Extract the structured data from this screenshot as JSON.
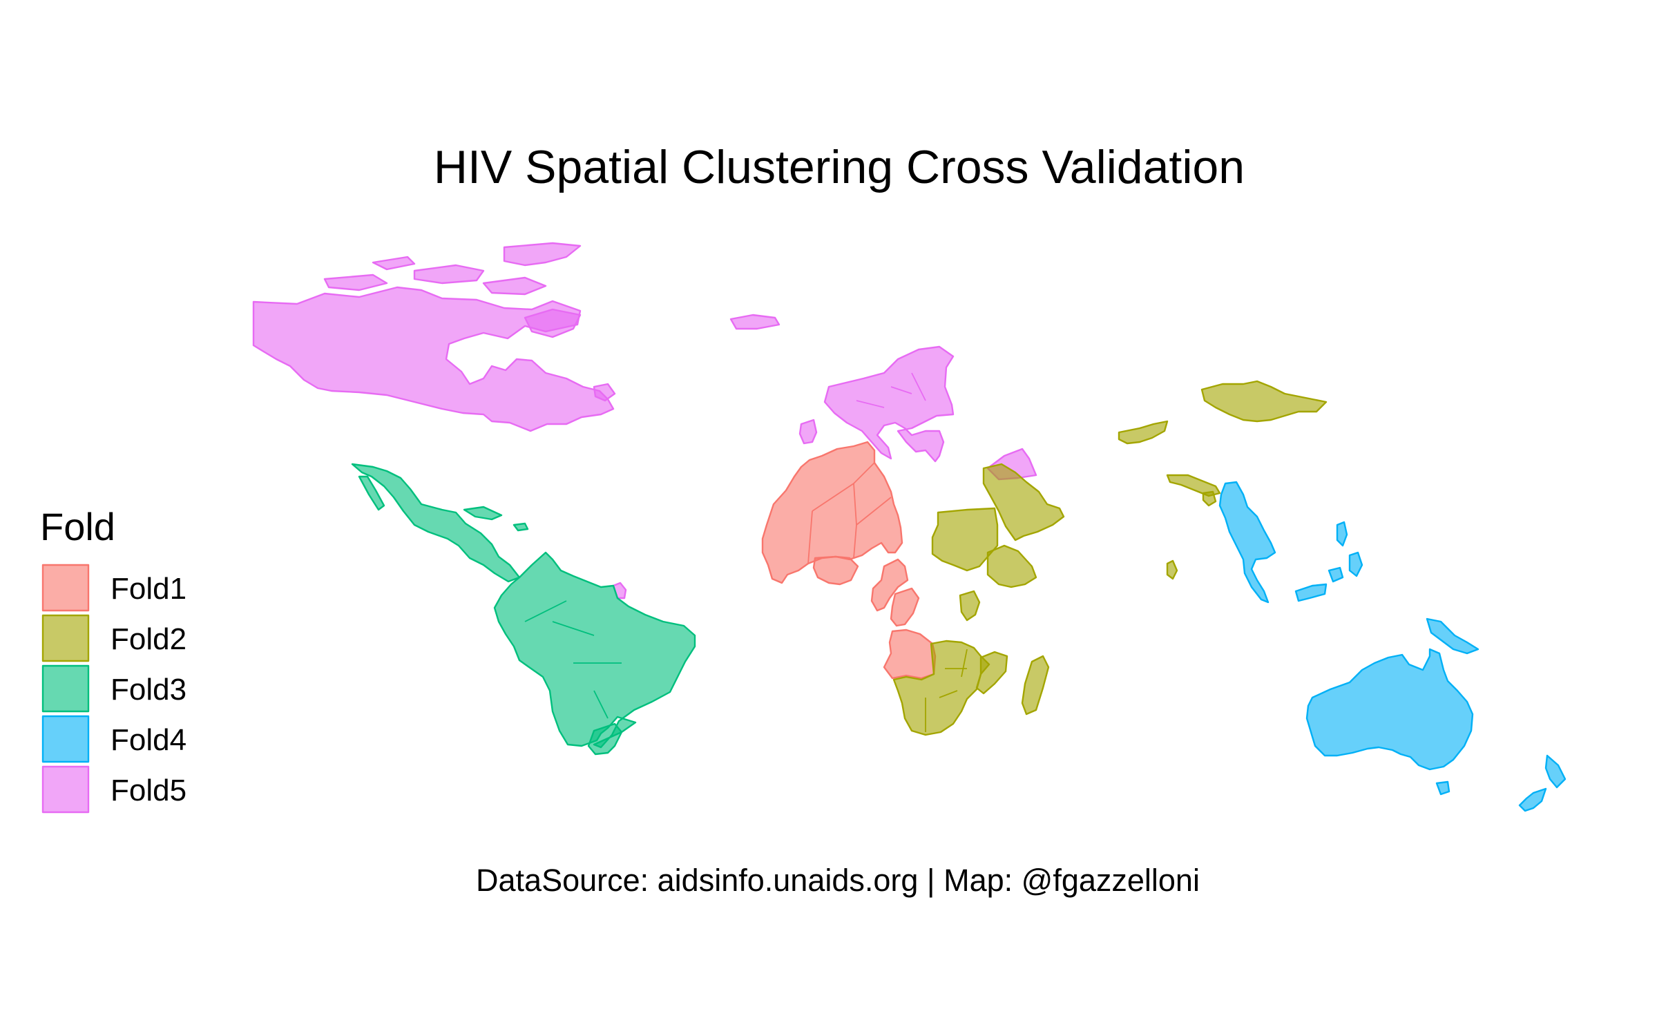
{
  "title": "HIV Spatial Clustering Cross Validation",
  "caption": "DataSource: aidsinfo.unaids.org | Map: @fgazzelloni",
  "legend": {
    "title": "Fold",
    "items": [
      {
        "label": "Fold1",
        "fill": "#F8766D"
      },
      {
        "label": "Fold2",
        "fill": "#A3A500"
      },
      {
        "label": "Fold3",
        "fill": "#00BF7D"
      },
      {
        "label": "Fold4",
        "fill": "#00B0F6"
      },
      {
        "label": "Fold5",
        "fill": "#E76BF3"
      }
    ]
  },
  "regions": [
    {
      "name": "North America (Canada)",
      "fold": "Fold5"
    },
    {
      "name": "Greenland",
      "fold": "Fold5"
    },
    {
      "name": "Iceland",
      "fold": "Fold5"
    },
    {
      "name": "Europe",
      "fold": "Fold5"
    },
    {
      "name": "Egypt",
      "fold": "Fold5"
    },
    {
      "name": "French Guiana",
      "fold": "Fold5"
    },
    {
      "name": "Mexico, Central America & Caribbean",
      "fold": "Fold3"
    },
    {
      "name": "South America",
      "fold": "Fold3"
    },
    {
      "name": "North & West Africa",
      "fold": "Fold1"
    },
    {
      "name": "Central Africa",
      "fold": "Fold1"
    },
    {
      "name": "Angola",
      "fold": "Fold1"
    },
    {
      "name": "East Africa",
      "fold": "Fold2"
    },
    {
      "name": "Southern Africa",
      "fold": "Fold2"
    },
    {
      "name": "Madagascar",
      "fold": "Fold2"
    },
    {
      "name": "Arabian Peninsula",
      "fold": "Fold2"
    },
    {
      "name": "Mongolia",
      "fold": "Fold2"
    },
    {
      "name": "Central Asia",
      "fold": "Fold2"
    },
    {
      "name": "South Asia",
      "fold": "Fold2"
    },
    {
      "name": "Sri Lanka",
      "fold": "Fold2"
    },
    {
      "name": "Southeast Asia",
      "fold": "Fold4"
    },
    {
      "name": "Philippines",
      "fold": "Fold4"
    },
    {
      "name": "Indonesia",
      "fold": "Fold4"
    },
    {
      "name": "Papua New Guinea",
      "fold": "Fold4"
    },
    {
      "name": "Australia",
      "fold": "Fold4"
    },
    {
      "name": "New Zealand",
      "fold": "Fold4"
    }
  ]
}
